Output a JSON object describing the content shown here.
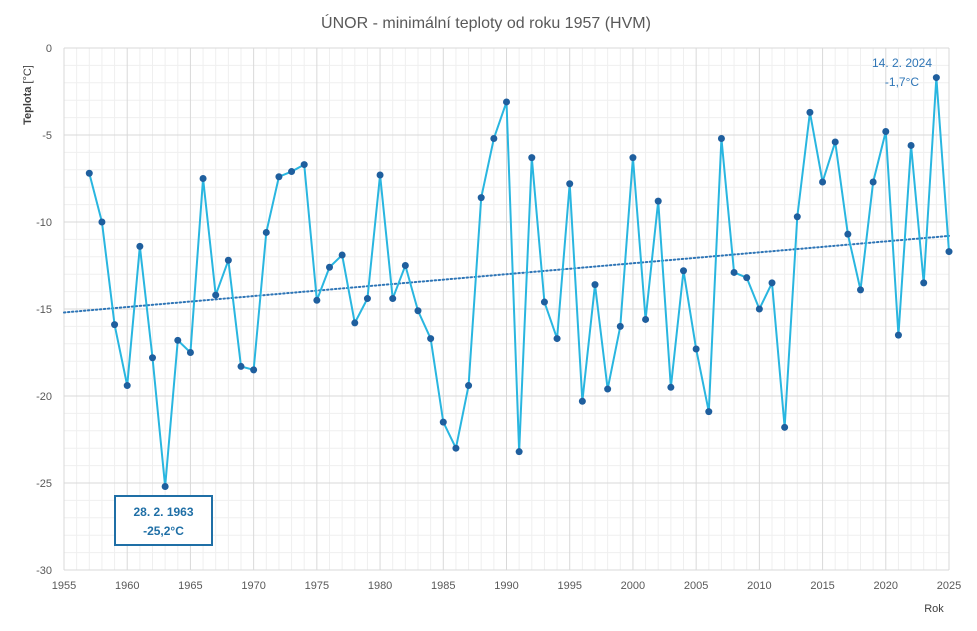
{
  "chart_data": {
    "type": "line",
    "title": "ÚNOR - minimální teploty od roku 1957 (HVM)",
    "xlabel": "Rok",
    "ylabel": "Teplota [°C]",
    "ylabel_name": "Teplota",
    "ylabel_unit": "[°C]",
    "xlim": [
      1955,
      2025
    ],
    "ylim": [
      -30,
      0
    ],
    "x_ticks": [
      1955,
      1960,
      1965,
      1970,
      1975,
      1980,
      1985,
      1990,
      1995,
      2000,
      2005,
      2010,
      2015,
      2020,
      2025
    ],
    "y_ticks": [
      0,
      -5,
      -10,
      -15,
      -20,
      -25,
      -30
    ],
    "grid": true,
    "colors": {
      "series": "#29B6E0",
      "markers": "#1F5F9E",
      "trend": "#2E75B6",
      "grid_major": "#D9D9D9",
      "grid_minor": "#EFEFEF",
      "annotation": "#1F6FA6"
    },
    "series": [
      {
        "x": [
          1957,
          1958,
          1959,
          1960,
          1961,
          1962,
          1963,
          1964,
          1965,
          1966,
          1967,
          1968,
          1969,
          1970,
          1971,
          1972,
          1973,
          1974,
          1975,
          1976,
          1977,
          1978,
          1979,
          1980,
          1981,
          1982,
          1983,
          1984,
          1985,
          1986,
          1987,
          1988,
          1989,
          1990,
          1991,
          1992,
          1993,
          1994,
          1995,
          1996,
          1997,
          1998,
          1999,
          2000,
          2001,
          2002,
          2003,
          2004,
          2005,
          2006,
          2007,
          2008,
          2009,
          2010,
          2011,
          2012,
          2013,
          2014,
          2015,
          2016,
          2017,
          2018,
          2019,
          2020,
          2021,
          2022,
          2023,
          2024,
          2025
        ],
        "y": [
          -7.2,
          -10.0,
          -15.9,
          -19.4,
          -11.4,
          -17.8,
          -25.2,
          -16.8,
          -17.5,
          -7.5,
          -14.2,
          -12.2,
          -18.3,
          -18.5,
          -10.6,
          -7.4,
          -7.1,
          -6.7,
          -14.5,
          -12.6,
          -11.9,
          -15.8,
          -14.4,
          -7.3,
          -14.4,
          -12.5,
          -15.1,
          -16.7,
          -21.5,
          -23.0,
          -19.4,
          -8.6,
          -5.2,
          -3.1,
          -23.2,
          -6.3,
          -14.6,
          -16.7,
          -7.8,
          -20.3,
          -13.6,
          -19.6,
          -16.0,
          -6.3,
          -15.6,
          -8.8,
          -19.5,
          -12.8,
          -17.3,
          -20.9,
          -5.2,
          -12.9,
          -13.2,
          -15.0,
          -13.5,
          -21.8,
          -9.7,
          -3.7,
          -7.7,
          -5.4,
          -10.7,
          -13.9,
          -7.7,
          -4.8,
          -16.5,
          -5.6,
          -13.5,
          -1.7,
          -11.7
        ]
      }
    ],
    "trendline": {
      "x": [
        1955,
        2025
      ],
      "y": [
        -15.2,
        -10.8
      ],
      "style": "dotted"
    },
    "annotations": [
      {
        "year": 1963,
        "value": -25.2,
        "date": "28. 2. 1963",
        "temp": "-25,2°C",
        "boxed": true
      },
      {
        "year": 2024,
        "value": -1.7,
        "date": "14. 2. 2024",
        "temp": "-1,7°C",
        "boxed": false
      }
    ]
  }
}
